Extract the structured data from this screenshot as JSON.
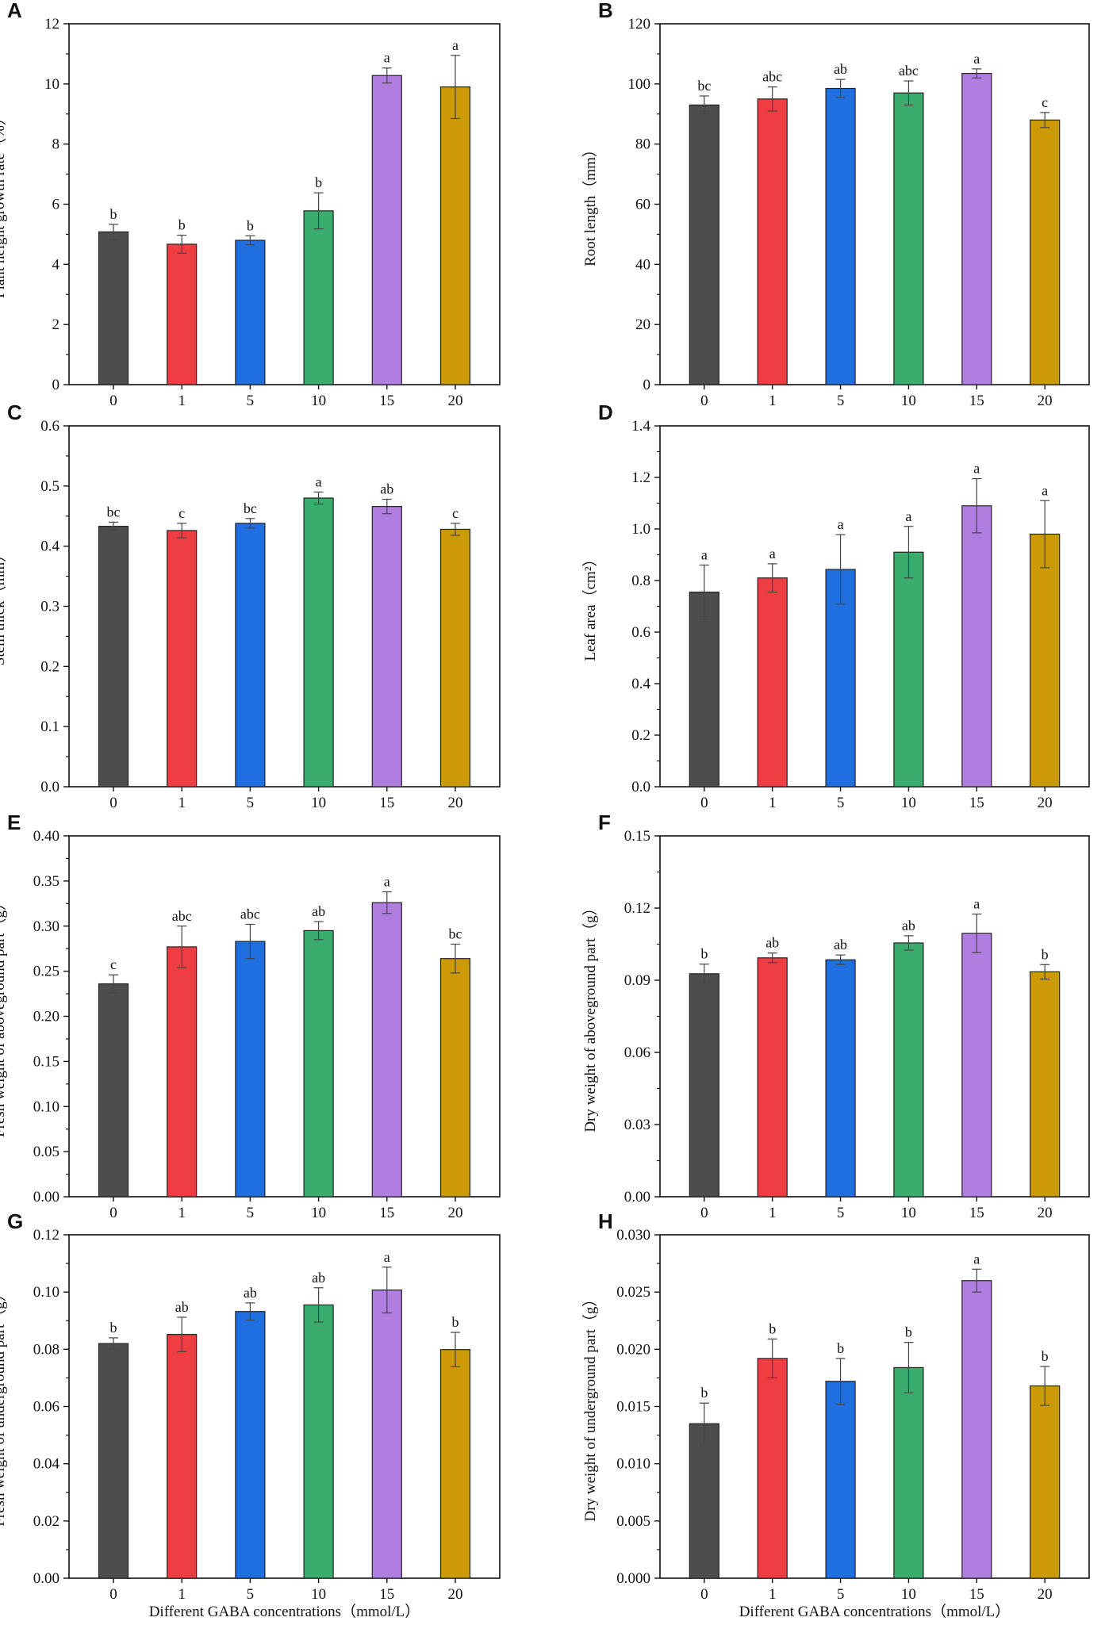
{
  "colors": [
    "#4d4d4d",
    "#ef3e42",
    "#1f6fe0",
    "#3aad6e",
    "#b07de0",
    "#cc9a06"
  ],
  "chart_data": [
    {
      "type": "bar",
      "panel": "A",
      "categories": [
        "0",
        "1",
        "5",
        "10",
        "15",
        "20"
      ],
      "values": [
        5.08,
        4.67,
        4.8,
        5.78,
        10.28,
        9.9
      ],
      "errors": [
        0.25,
        0.3,
        0.15,
        0.6,
        0.25,
        1.05
      ],
      "significance": [
        "b",
        "b",
        "b",
        "b",
        "a",
        "a"
      ],
      "ylabel": "Plant height growth rate（%）",
      "xlabel": "",
      "ylim": [
        0,
        12
      ],
      "yticks": [
        "0",
        "2",
        "4",
        "6",
        "8",
        "10",
        "12"
      ]
    },
    {
      "type": "bar",
      "panel": "B",
      "categories": [
        "0",
        "1",
        "5",
        "10",
        "15",
        "20"
      ],
      "values": [
        93,
        95,
        98.5,
        97,
        103.5,
        88
      ],
      "errors": [
        3,
        4,
        3,
        4,
        1.5,
        2.5
      ],
      "significance": [
        "bc",
        "abc",
        "ab",
        "abc",
        "a",
        "c"
      ],
      "ylabel": "Root length（mm）",
      "xlabel": "",
      "ylim": [
        0,
        120
      ],
      "yticks": [
        "0",
        "20",
        "40",
        "60",
        "80",
        "100",
        "120"
      ]
    },
    {
      "type": "bar",
      "panel": "C",
      "categories": [
        "0",
        "1",
        "5",
        "10",
        "15",
        "20"
      ],
      "values": [
        0.433,
        0.426,
        0.438,
        0.48,
        0.466,
        0.428
      ],
      "errors": [
        0.007,
        0.012,
        0.008,
        0.01,
        0.012,
        0.01
      ],
      "significance": [
        "bc",
        "c",
        "bc",
        "a",
        "ab",
        "c"
      ],
      "ylabel": "Stem thick（mm）",
      "xlabel": "",
      "ylim": [
        0,
        0.6
      ],
      "yticks": [
        "0.0",
        "0.1",
        "0.2",
        "0.3",
        "0.4",
        "0.5",
        "0.6"
      ]
    },
    {
      "type": "bar",
      "panel": "D",
      "categories": [
        "0",
        "1",
        "5",
        "10",
        "15",
        "20"
      ],
      "values": [
        0.755,
        0.81,
        0.843,
        0.91,
        1.09,
        0.98
      ],
      "errors": [
        0.105,
        0.055,
        0.135,
        0.1,
        0.105,
        0.13
      ],
      "significance": [
        "a",
        "a",
        "a",
        "a",
        "a",
        "a"
      ],
      "ylabel": "Leaf area（cm²）",
      "xlabel": "",
      "ylim": [
        0,
        1.4
      ],
      "yticks": [
        "0.0",
        "0.2",
        "0.4",
        "0.6",
        "0.8",
        "1.0",
        "1.2",
        "1.4"
      ]
    },
    {
      "type": "bar",
      "panel": "E",
      "categories": [
        "0",
        "1",
        "5",
        "10",
        "15",
        "20"
      ],
      "values": [
        0.236,
        0.277,
        0.283,
        0.295,
        0.326,
        0.264
      ],
      "errors": [
        0.01,
        0.023,
        0.019,
        0.01,
        0.012,
        0.016
      ],
      "significance": [
        "c",
        "abc",
        "abc",
        "ab",
        "a",
        "bc"
      ],
      "ylabel": "Fresh weight of aboveground part（g）",
      "xlabel": "",
      "ylim": [
        0,
        0.4
      ],
      "yticks": [
        "0.00",
        "0.05",
        "0.10",
        "0.15",
        "0.20",
        "0.25",
        "0.30",
        "0.35",
        "0.40"
      ]
    },
    {
      "type": "bar",
      "panel": "F",
      "categories": [
        "0",
        "1",
        "5",
        "10",
        "15",
        "20"
      ],
      "values": [
        0.0927,
        0.0993,
        0.0985,
        0.1055,
        0.1095,
        0.0935
      ],
      "errors": [
        0.004,
        0.002,
        0.002,
        0.003,
        0.008,
        0.003
      ],
      "significance": [
        "b",
        "ab",
        "ab",
        "ab",
        "a",
        "b"
      ],
      "ylabel": "Dry weight of aboveground part（g）",
      "xlabel": "",
      "ylim": [
        0,
        0.15
      ],
      "yticks": [
        "0.00",
        "0.03",
        "0.06",
        "0.09",
        "0.12",
        "0.15"
      ]
    },
    {
      "type": "bar",
      "panel": "G",
      "categories": [
        "0",
        "1",
        "5",
        "10",
        "15",
        "20"
      ],
      "values": [
        0.082,
        0.0852,
        0.0932,
        0.0955,
        0.1007,
        0.0799
      ],
      "errors": [
        0.002,
        0.006,
        0.003,
        0.006,
        0.008,
        0.006
      ],
      "significance": [
        "b",
        "ab",
        "ab",
        "ab",
        "a",
        "b"
      ],
      "ylabel": "Fresh weight of underground part（g）",
      "xlabel": "Different GABA concentrations（mmol/L）",
      "ylim": [
        0,
        0.12
      ],
      "yticks": [
        "0.00",
        "0.02",
        "0.04",
        "0.06",
        "0.08",
        "0.10",
        "0.12"
      ]
    },
    {
      "type": "bar",
      "panel": "H",
      "categories": [
        "0",
        "1",
        "5",
        "10",
        "15",
        "20"
      ],
      "values": [
        0.0135,
        0.0192,
        0.0172,
        0.0184,
        0.026,
        0.0168
      ],
      "errors": [
        0.0018,
        0.0017,
        0.002,
        0.0022,
        0.001,
        0.0017
      ],
      "significance": [
        "b",
        "b",
        "b",
        "b",
        "a",
        "b"
      ],
      "ylabel": "Dry weight of underground part（g）",
      "xlabel": "Different GABA concentrations（mmol/L）",
      "ylim": [
        0,
        0.03
      ],
      "yticks": [
        "0.000",
        "0.005",
        "0.010",
        "0.015",
        "0.020",
        "0.025",
        "0.030"
      ]
    }
  ]
}
